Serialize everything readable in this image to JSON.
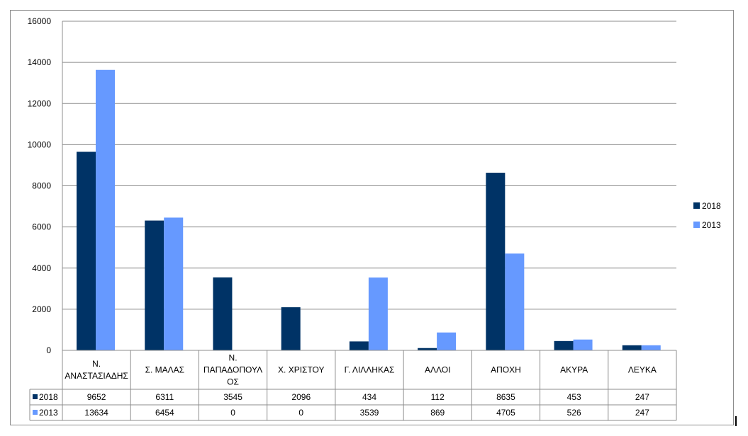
{
  "chart_data": {
    "type": "bar",
    "categories": [
      "Ν. ΑΝΑΣΤΑΣΙΑΔΗΣ",
      "Σ. ΜΑΛΑΣ",
      "Ν. ΠΑΠΑΔΟΠΟΥΛΟΣ",
      "Χ. ΧΡΙΣΤΟΥ",
      "Γ. ΛΙΛΛΗΚΑΣ",
      "ΑΛΛΟΙ",
      "ΑΠΟΧΗ",
      "ΑΚΥΡΑ",
      "ΛΕΥΚΑ"
    ],
    "category_lines": [
      [
        "Ν.",
        "ΑΝΑΣΤΑΣΙΑΔΗΣ"
      ],
      [
        "Σ. ΜΑΛΑΣ"
      ],
      [
        "Ν.",
        "ΠΑΠΑΔΟΠΟΥΛ",
        "ΟΣ"
      ],
      [
        "Χ. ΧΡΙΣΤΟΥ"
      ],
      [
        "Γ. ΛΙΛΛΗΚΑΣ"
      ],
      [
        "ΑΛΛΟΙ"
      ],
      [
        "ΑΠΟΧΗ"
      ],
      [
        "ΑΚΥΡΑ"
      ],
      [
        "ΛΕΥΚΑ"
      ]
    ],
    "series": [
      {
        "name": "2018",
        "color": "#003366",
        "values": [
          9652,
          6311,
          3545,
          2096,
          434,
          112,
          8635,
          453,
          247
        ]
      },
      {
        "name": "2013",
        "color": "#6699ff",
        "values": [
          13634,
          6454,
          0,
          0,
          3539,
          869,
          4705,
          526,
          247
        ]
      }
    ],
    "ylim": [
      0,
      16000
    ],
    "yticks": [
      0,
      2000,
      4000,
      6000,
      8000,
      10000,
      12000,
      14000,
      16000
    ],
    "grid": true,
    "legend": "right",
    "data_table": true
  }
}
